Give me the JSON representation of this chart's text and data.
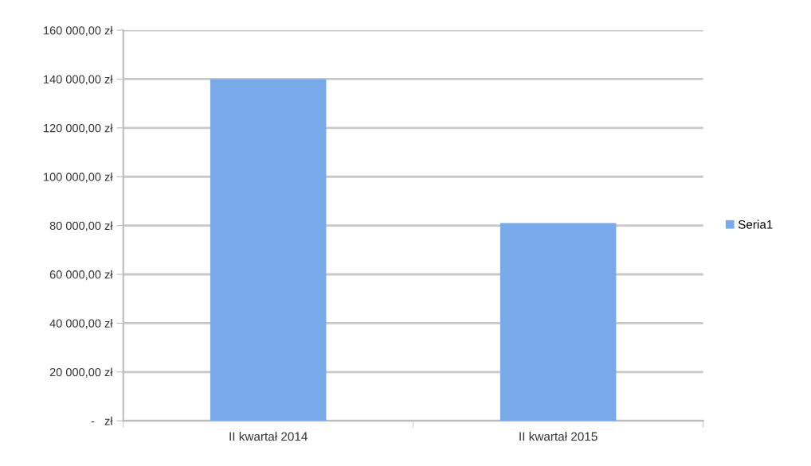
{
  "chart_data": {
    "type": "bar",
    "categories": [
      "II kwartał 2014",
      "II kwartał 2015"
    ],
    "series": [
      {
        "name": "Seria1",
        "color": "#78aaea",
        "values": [
          140000,
          81000
        ]
      }
    ],
    "ylim": [
      0,
      160000
    ],
    "yticks": [
      {
        "value": 0,
        "label": "-   zł"
      },
      {
        "value": 20000,
        "label": "20 000,00 zł"
      },
      {
        "value": 40000,
        "label": "40 000,00 zł"
      },
      {
        "value": 60000,
        "label": "60 000,00 zł"
      },
      {
        "value": 80000,
        "label": "80 000,00 zł"
      },
      {
        "value": 100000,
        "label": "100 000,00 zł"
      },
      {
        "value": 120000,
        "label": "120 000,00 zł"
      },
      {
        "value": 140000,
        "label": "140 000,00 zł"
      },
      {
        "value": 160000,
        "label": "160 000,00 zł"
      }
    ],
    "grid": "y",
    "legend": "right"
  }
}
